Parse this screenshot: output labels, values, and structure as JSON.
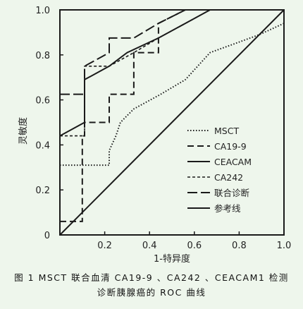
{
  "chart_data": {
    "type": "line",
    "title": "",
    "xlabel": "1-特异度",
    "ylabel": "灵敏度",
    "xlim": [
      0,
      1.0
    ],
    "ylim": [
      0,
      1.0
    ],
    "x_ticks": [
      "0",
      "0.2",
      "0.4",
      "0.6",
      "0.8",
      "1.0"
    ],
    "y_ticks": [
      "0",
      "0.2",
      "0.4",
      "0.6",
      "0.8",
      "1.0"
    ],
    "grid": false,
    "legend_position": "right",
    "series": [
      {
        "name": "MSCT",
        "style": "dotted",
        "x": [
          0,
          0.22,
          0.22,
          0.25,
          0.27,
          0.33,
          0.45,
          0.56,
          0.67,
          0.78,
          0.89,
          1.0
        ],
        "y": [
          0.31,
          0.31,
          0.375,
          0.44,
          0.5,
          0.56,
          0.625,
          0.69,
          0.81,
          0.85,
          0.89,
          0.94
        ]
      },
      {
        "name": "CA19-9",
        "style": "dashed",
        "x": [
          0,
          0.03,
          0.03,
          0.1,
          0.1,
          0.11,
          0.11,
          0.22,
          0.22,
          0.33,
          0.33,
          0.44,
          0.44,
          0.56,
          0.67,
          1.0
        ],
        "y": [
          0.06,
          0.06,
          0.06,
          0.06,
          0.44,
          0.44,
          0.5,
          0.5,
          0.625,
          0.625,
          0.81,
          0.81,
          0.94,
          1.0,
          1.0,
          1.0
        ]
      },
      {
        "name": "CEACAM",
        "style": "solid",
        "x": [
          0,
          0.11,
          0.11,
          0.22,
          0.3,
          0.44,
          0.56,
          0.67,
          1.0
        ],
        "y": [
          0.44,
          0.5,
          0.69,
          0.75,
          0.81,
          0.875,
          0.94,
          1.0,
          1.0
        ]
      },
      {
        "name": "CA242",
        "style": "short-dash",
        "x": [
          0,
          0.11,
          0.11,
          0.22,
          0.33,
          0.44,
          0.56,
          0.67,
          1.0
        ],
        "y": [
          0.44,
          0.44,
          0.75,
          0.75,
          0.81,
          0.875,
          0.94,
          1.0,
          1.0
        ]
      },
      {
        "name": "联合诊断",
        "style": "long-dash",
        "x": [
          0,
          0.11,
          0.11,
          0.22,
          0.22,
          0.33,
          0.33,
          0.44,
          0.56,
          1.0
        ],
        "y": [
          0.625,
          0.625,
          0.75,
          0.81,
          0.875,
          0.875,
          0.875,
          0.94,
          1.0,
          1.0
        ]
      },
      {
        "name": "参考线",
        "style": "solid",
        "x": [
          0,
          1.0
        ],
        "y": [
          0,
          1.0
        ]
      }
    ]
  },
  "caption": {
    "line1": "图 1  MSCT 联合血清 CA19-9 、CA242 、CEACAM1 检测",
    "line2": "诊断胰腺癌的 ROC 曲线"
  },
  "colors": {
    "background": "#eef6ec",
    "line": "#1a1a1a"
  }
}
